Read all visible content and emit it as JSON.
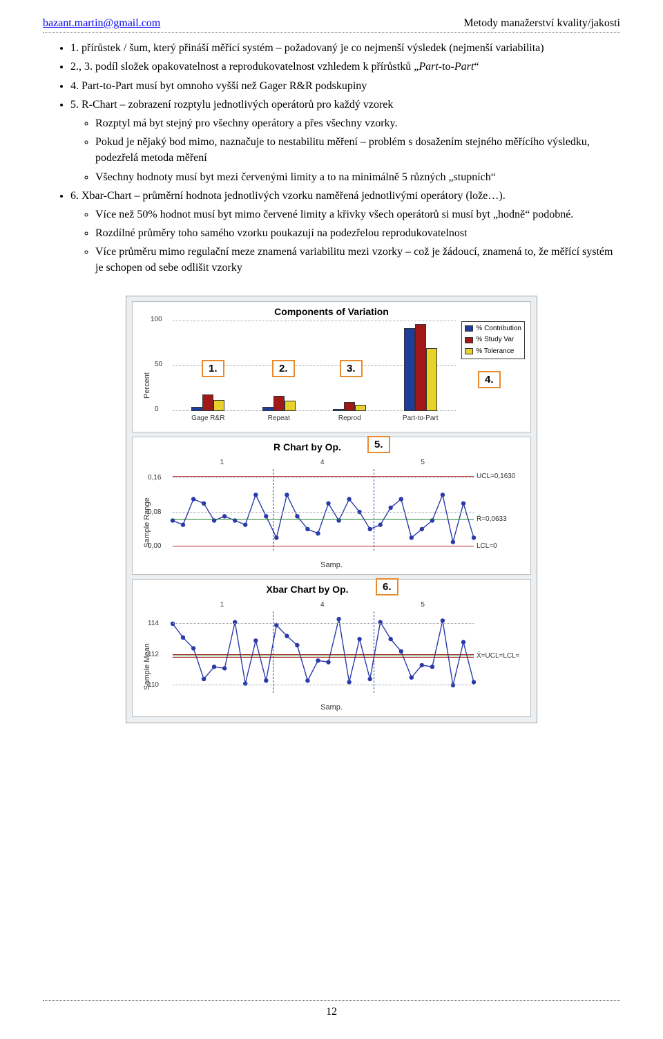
{
  "header": {
    "email": "bazant.martin@gmail.com",
    "course": "Metody manažerství kvality/jakosti"
  },
  "list": {
    "i1": "1. přírůstek / šum, který přináší měřící systém – požadovaný je co nejmenší výsledek (nejmenší variabilita)",
    "i2a": "2., 3. podíl složek opakovatelnost a reprodukovatelnost vzhledem k přírůstků „",
    "i2b": "Part",
    "i2c": "-to-",
    "i2d": "Part",
    "i2e": "“",
    "i3": "4. Part-to-Part musí byt omnoho vyšší než Gager R&R podskupiny",
    "i4": "5. R-Chart – zobrazení rozptylu jednotlivých operátorů pro každý vzorek",
    "i4s1": "Rozptyl má byt stejný pro všechny operátory a přes všechny vzorky.",
    "i4s2": "Pokud je nějaký bod mimo, naznačuje to nestabilitu měření – problém s dosažením stejného měřícího výsledku, podezřelá metoda měření",
    "i4s3": "Všechny hodnoty musí byt mezi červenými limity a to na minimálně 5 různých „stupních“",
    "i5": "6. Xbar-Chart – průměrní hodnota jednotlivých vzorku naměřená jednotlivými operátory (lože…).",
    "i5s1": "Více než 50% hodnot musí byt mimo červené limity a křivky všech operátorů si musí byt „hodně“ podobné.",
    "i5s2": "Rozdílné průměry toho samého vzorku poukazují na podezřelou reprodukovatelnost",
    "i5s3": "Více průměru mimo regulační meze znamená variabilitu mezi vzorky – což je žádoucí, znamená to, že měřící systém je schopen od sebe odlišit vzorky"
  },
  "callouts": {
    "c1": "1.",
    "c2": "2.",
    "c3": "3.",
    "c4": "4.",
    "c5": "5.",
    "c6": "6."
  },
  "panel1": {
    "title": "Components of Variation",
    "ylabel": "Percent",
    "ytick0": "0",
    "ytick50": "50",
    "ytick100": "100",
    "cats": [
      "Gage R&R",
      "Repeat",
      "Reprod",
      "Part-to-Part"
    ],
    "legend": [
      {
        "label": "% Contribution",
        "color": "#1f3d9a"
      },
      {
        "label": "% Study Var",
        "color": "#a01818"
      },
      {
        "label": "% Tolerance",
        "color": "#e6d22a"
      }
    ],
    "groups": [
      {
        "vals": [
          4,
          18,
          12
        ]
      },
      {
        "vals": [
          4,
          17,
          11
        ]
      },
      {
        "vals": [
          2,
          10,
          7
        ]
      },
      {
        "vals": [
          92,
          97,
          70
        ]
      }
    ],
    "colors": [
      "#1f3d9a",
      "#a01818",
      "#e6d22a"
    ]
  },
  "panel2": {
    "title": "R Chart by Op.",
    "ylabel": "Sample Range",
    "xlabel": "Samp.",
    "yticks": [
      {
        "v": 0.0,
        "lbl": "0,00"
      },
      {
        "v": 0.08,
        "lbl": "0,08"
      },
      {
        "v": 0.16,
        "lbl": "0,16"
      }
    ],
    "opTicks": [
      "1",
      "4",
      "5"
    ],
    "ucl": 0.163,
    "ucl_lbl": "UCL=0,1630",
    "cl": 0.0633,
    "cl_lbl": "R̄=0,0633",
    "lcl": 0.0,
    "lcl_lbl": "LCL=0",
    "series": [
      0.06,
      0.05,
      0.11,
      0.1,
      0.06,
      0.07,
      0.06,
      0.05,
      0.12,
      0.07,
      0.02,
      0.12,
      0.07,
      0.04,
      0.03,
      0.1,
      0.06,
      0.11,
      0.08,
      0.04,
      0.05,
      0.09,
      0.11,
      0.02,
      0.04,
      0.06,
      0.12,
      0.01,
      0.1,
      0.02
    ]
  },
  "panel3": {
    "title": "Xbar Chart by Op.",
    "ylabel": "Sample Mean",
    "xlabel": "Samp.",
    "yticks": [
      {
        "v": 110,
        "lbl": "110"
      },
      {
        "v": 112,
        "lbl": "112"
      },
      {
        "v": 114,
        "lbl": "114"
      }
    ],
    "opTicks": [
      "1",
      "4",
      "5"
    ],
    "uclcl_lbl": "X̄=UCL=LCL≈",
    "cl": 111.9,
    "ucl": 112.0,
    "lcl": 111.8,
    "series": [
      114.0,
      113.1,
      112.4,
      110.4,
      111.2,
      111.1,
      114.1,
      110.1,
      112.9,
      110.3,
      113.9,
      113.2,
      112.6,
      110.3,
      111.6,
      111.5,
      114.3,
      110.2,
      113.0,
      110.4,
      114.1,
      113.0,
      112.2,
      110.5,
      111.3,
      111.2,
      114.2,
      110.0,
      112.8,
      110.2
    ]
  },
  "chartStyle": {
    "marker_color": "#2a3aa8",
    "line_color": "#2a3aa8",
    "bg": "#ffffff"
  },
  "page": "12"
}
